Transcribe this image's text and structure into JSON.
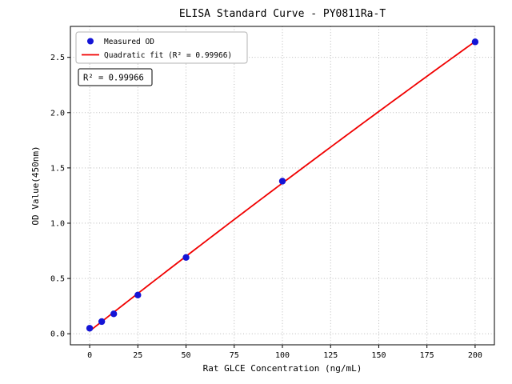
{
  "figure": {
    "kind": "matplotlib-style static plot"
  },
  "chart_data": {
    "type": "scatter",
    "title": "ELISA Standard Curve - PY0811Ra-T",
    "xlabel": "Rat GLCE Concentration (ng/mL)",
    "ylabel": "OD Value(450nm)",
    "xlim": [
      -10,
      210
    ],
    "ylim": [
      -0.1,
      2.78
    ],
    "x_ticks": [
      0,
      25,
      50,
      75,
      100,
      125,
      150,
      175,
      200
    ],
    "x_tick_labels": [
      "0",
      "25",
      "50",
      "75",
      "100",
      "125",
      "150",
      "175",
      "200"
    ],
    "y_ticks": [
      0,
      0.5,
      1.0,
      1.5,
      2.0,
      2.5
    ],
    "y_tick_labels": [
      "0.0",
      "0.5",
      "1.0",
      "1.5",
      "2.0",
      "2.5"
    ],
    "grid": true,
    "grid_style": "dotted",
    "colors": {
      "scatter": "#1414d6",
      "fit_line": "#f00000",
      "grid": "#b0b0b0",
      "legend_border": "#b3b3b3",
      "annotation_border": "#000000"
    },
    "legend": {
      "position": "upper-left",
      "entries": [
        {
          "label": "Measured OD",
          "marker": "circle",
          "color": "#1414d6"
        },
        {
          "label": "Quadratic fit (R² = 0.99966)",
          "marker": "line",
          "color": "#f00000"
        }
      ]
    },
    "annotation": {
      "text": "R² = 0.99966"
    },
    "series": [
      {
        "name": "Measured OD",
        "type": "scatter",
        "color": "#1414d6",
        "x": [
          0,
          6.25,
          12.5,
          25,
          50,
          100,
          200
        ],
        "y": [
          0.05,
          0.11,
          0.18,
          0.35,
          0.69,
          1.38,
          2.64
        ]
      },
      {
        "name": "Quadratic fit (R² = 0.99966)",
        "type": "quadratic-fit",
        "color": "#f00000",
        "fit_of": "Measured OD",
        "r_squared": 0.99966,
        "x_range": [
          0,
          200
        ]
      }
    ]
  }
}
